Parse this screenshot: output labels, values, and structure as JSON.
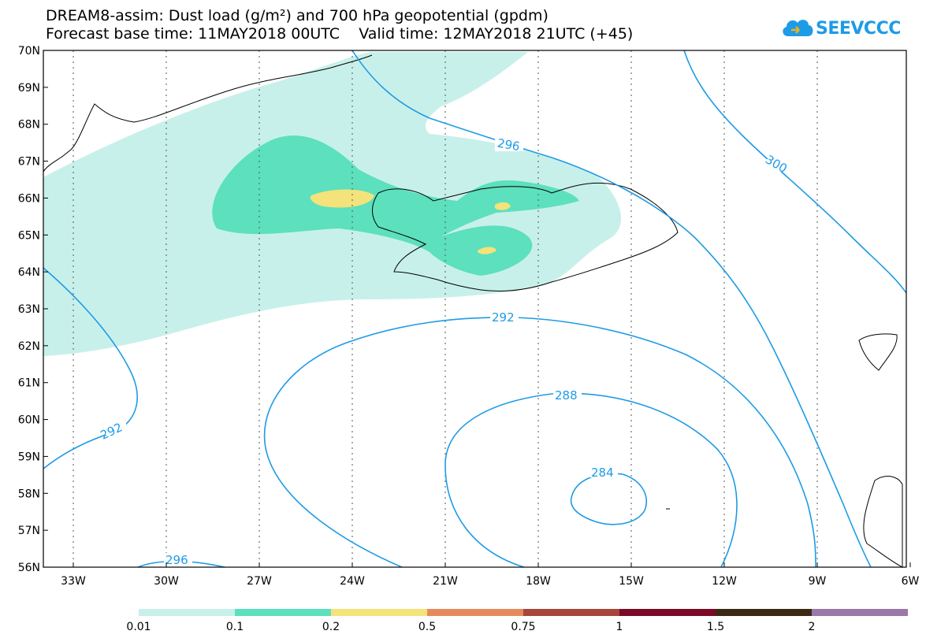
{
  "title": {
    "line1": "DREAM8-assim: Dust load (g/m²) and 700 hPa geopotential (gpdm)",
    "line2": "Forecast base time: 11MAY2018 00UTC    Valid time: 12MAY2018 21UTC (+45)"
  },
  "logo": {
    "text": "SEEVCCC",
    "icon": "cloud-icon"
  },
  "map": {
    "lat_labels": [
      "70N",
      "69N",
      "68N",
      "67N",
      "66N",
      "65N",
      "64N",
      "63N",
      "62N",
      "61N",
      "60N",
      "59N",
      "58N",
      "57N",
      "56N"
    ],
    "lon_labels": [
      "33W",
      "30W",
      "27W",
      "24W",
      "21W",
      "18W",
      "15W",
      "12W",
      "9W",
      "6W"
    ],
    "contour_labels": {
      "c296_north": "296",
      "c300": "300",
      "c292_center": "292",
      "c292_west": "292",
      "c288": "288",
      "c284": "284",
      "c296_south": "296"
    }
  },
  "legend": {
    "labels": [
      "0.01",
      "0.1",
      "0.2",
      "0.5",
      "0.75",
      "1",
      "1.5",
      "2"
    ],
    "colors": [
      "#c8f0ea",
      "#5ce0be",
      "#f4e27a",
      "#e68a5e",
      "#a8463c",
      "#7a0a28",
      "#3a2a14",
      "#9a78a8"
    ]
  }
}
